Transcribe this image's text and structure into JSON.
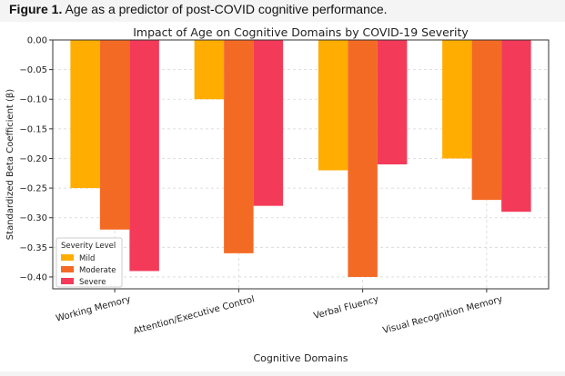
{
  "caption": {
    "label": "Figure 1.",
    "text": "Age as a predictor of post-COVID cognitive performance."
  },
  "chart_data": {
    "type": "bar",
    "title": "Impact of Age on Cognitive Domains by COVID-19 Severity",
    "xlabel": "Cognitive Domains",
    "ylabel": "Standardized Beta Coefficient (β)",
    "categories": [
      "Working Memory",
      "Attention/Executive Control",
      "Verbal Fluency",
      "Visual Recognition Memory"
    ],
    "series": [
      {
        "name": "Mild",
        "color": "#ffad00",
        "values": [
          -0.25,
          -0.1,
          -0.22,
          -0.2
        ]
      },
      {
        "name": "Moderate",
        "color": "#f36a25",
        "values": [
          -0.32,
          -0.36,
          -0.4,
          -0.27
        ]
      },
      {
        "name": "Severe",
        "color": "#f43a59",
        "values": [
          -0.39,
          -0.28,
          -0.21,
          -0.29
        ]
      }
    ],
    "ylim": [
      -0.42,
      0.0
    ],
    "yticks": [
      "0.00",
      "−0.05",
      "−0.10",
      "−0.15",
      "−0.20",
      "−0.25",
      "−0.30",
      "−0.35",
      "−0.40"
    ],
    "ytick_values": [
      0.0,
      -0.05,
      -0.1,
      -0.15,
      -0.2,
      -0.25,
      -0.3,
      -0.35,
      -0.4
    ],
    "grid": true,
    "legend": {
      "title": "Severity Level",
      "position": "lower-left"
    }
  }
}
